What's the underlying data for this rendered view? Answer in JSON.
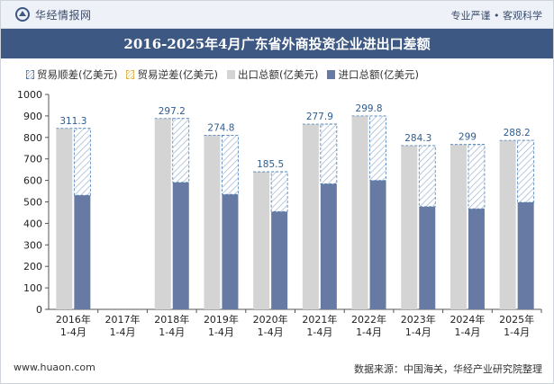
{
  "header": {
    "brand": "华经情报网",
    "tagline": "专业严谨 • 客观科学"
  },
  "footer": {
    "website": "www.huaon.com",
    "source": "数据来源：中国海关，华经产业研究院整理"
  },
  "colors": {
    "title_bg": "#3d5883",
    "export_bar": "#d4d4d4",
    "import_bar": "#667aa3",
    "surplus_label": "#2d5d91"
  },
  "chart_data": {
    "type": "bar",
    "title": "2016-2025年4月广东省外商投资企业进出口差额",
    "legend": [
      "贸易顺差(亿美元)",
      "贸易逆差(亿美元)",
      "出口总额(亿美元)",
      "进口总额(亿美元)"
    ],
    "legend_position": "top",
    "categories": [
      "2016年\n1-4月",
      "2017年\n1-4月",
      "2018年\n1-4月",
      "2019年\n1-4月",
      "2020年\n1-4月",
      "2021年\n1-4月",
      "2022年\n1-4月",
      "2023年\n1-4月",
      "2024年\n1-4月",
      "2025年\n1-4月"
    ],
    "series": [
      {
        "name": "出口总额(亿美元)",
        "values": [
          842,
          null,
          888,
          810,
          640,
          862,
          900,
          762,
          767,
          786
        ]
      },
      {
        "name": "进口总额(亿美元)",
        "values": [
          531,
          null,
          591,
          535,
          455,
          584,
          600,
          478,
          468,
          498
        ]
      },
      {
        "name": "贸易顺差(亿美元)",
        "values": [
          311.3,
          null,
          297.2,
          274.8,
          185.5,
          277.9,
          299.8,
          284.3,
          299,
          288.2
        ]
      }
    ],
    "data_labels": [
      "311.3",
      "",
      "297.2",
      "274.8",
      "185.5",
      "277.9",
      "299.8",
      "284.3",
      "299",
      "288.2"
    ],
    "yticks": [
      "0",
      "100",
      "200",
      "300",
      "400",
      "500",
      "600",
      "700",
      "800",
      "900",
      "1000"
    ],
    "ylim": [
      0,
      1000
    ],
    "grid": false
  }
}
